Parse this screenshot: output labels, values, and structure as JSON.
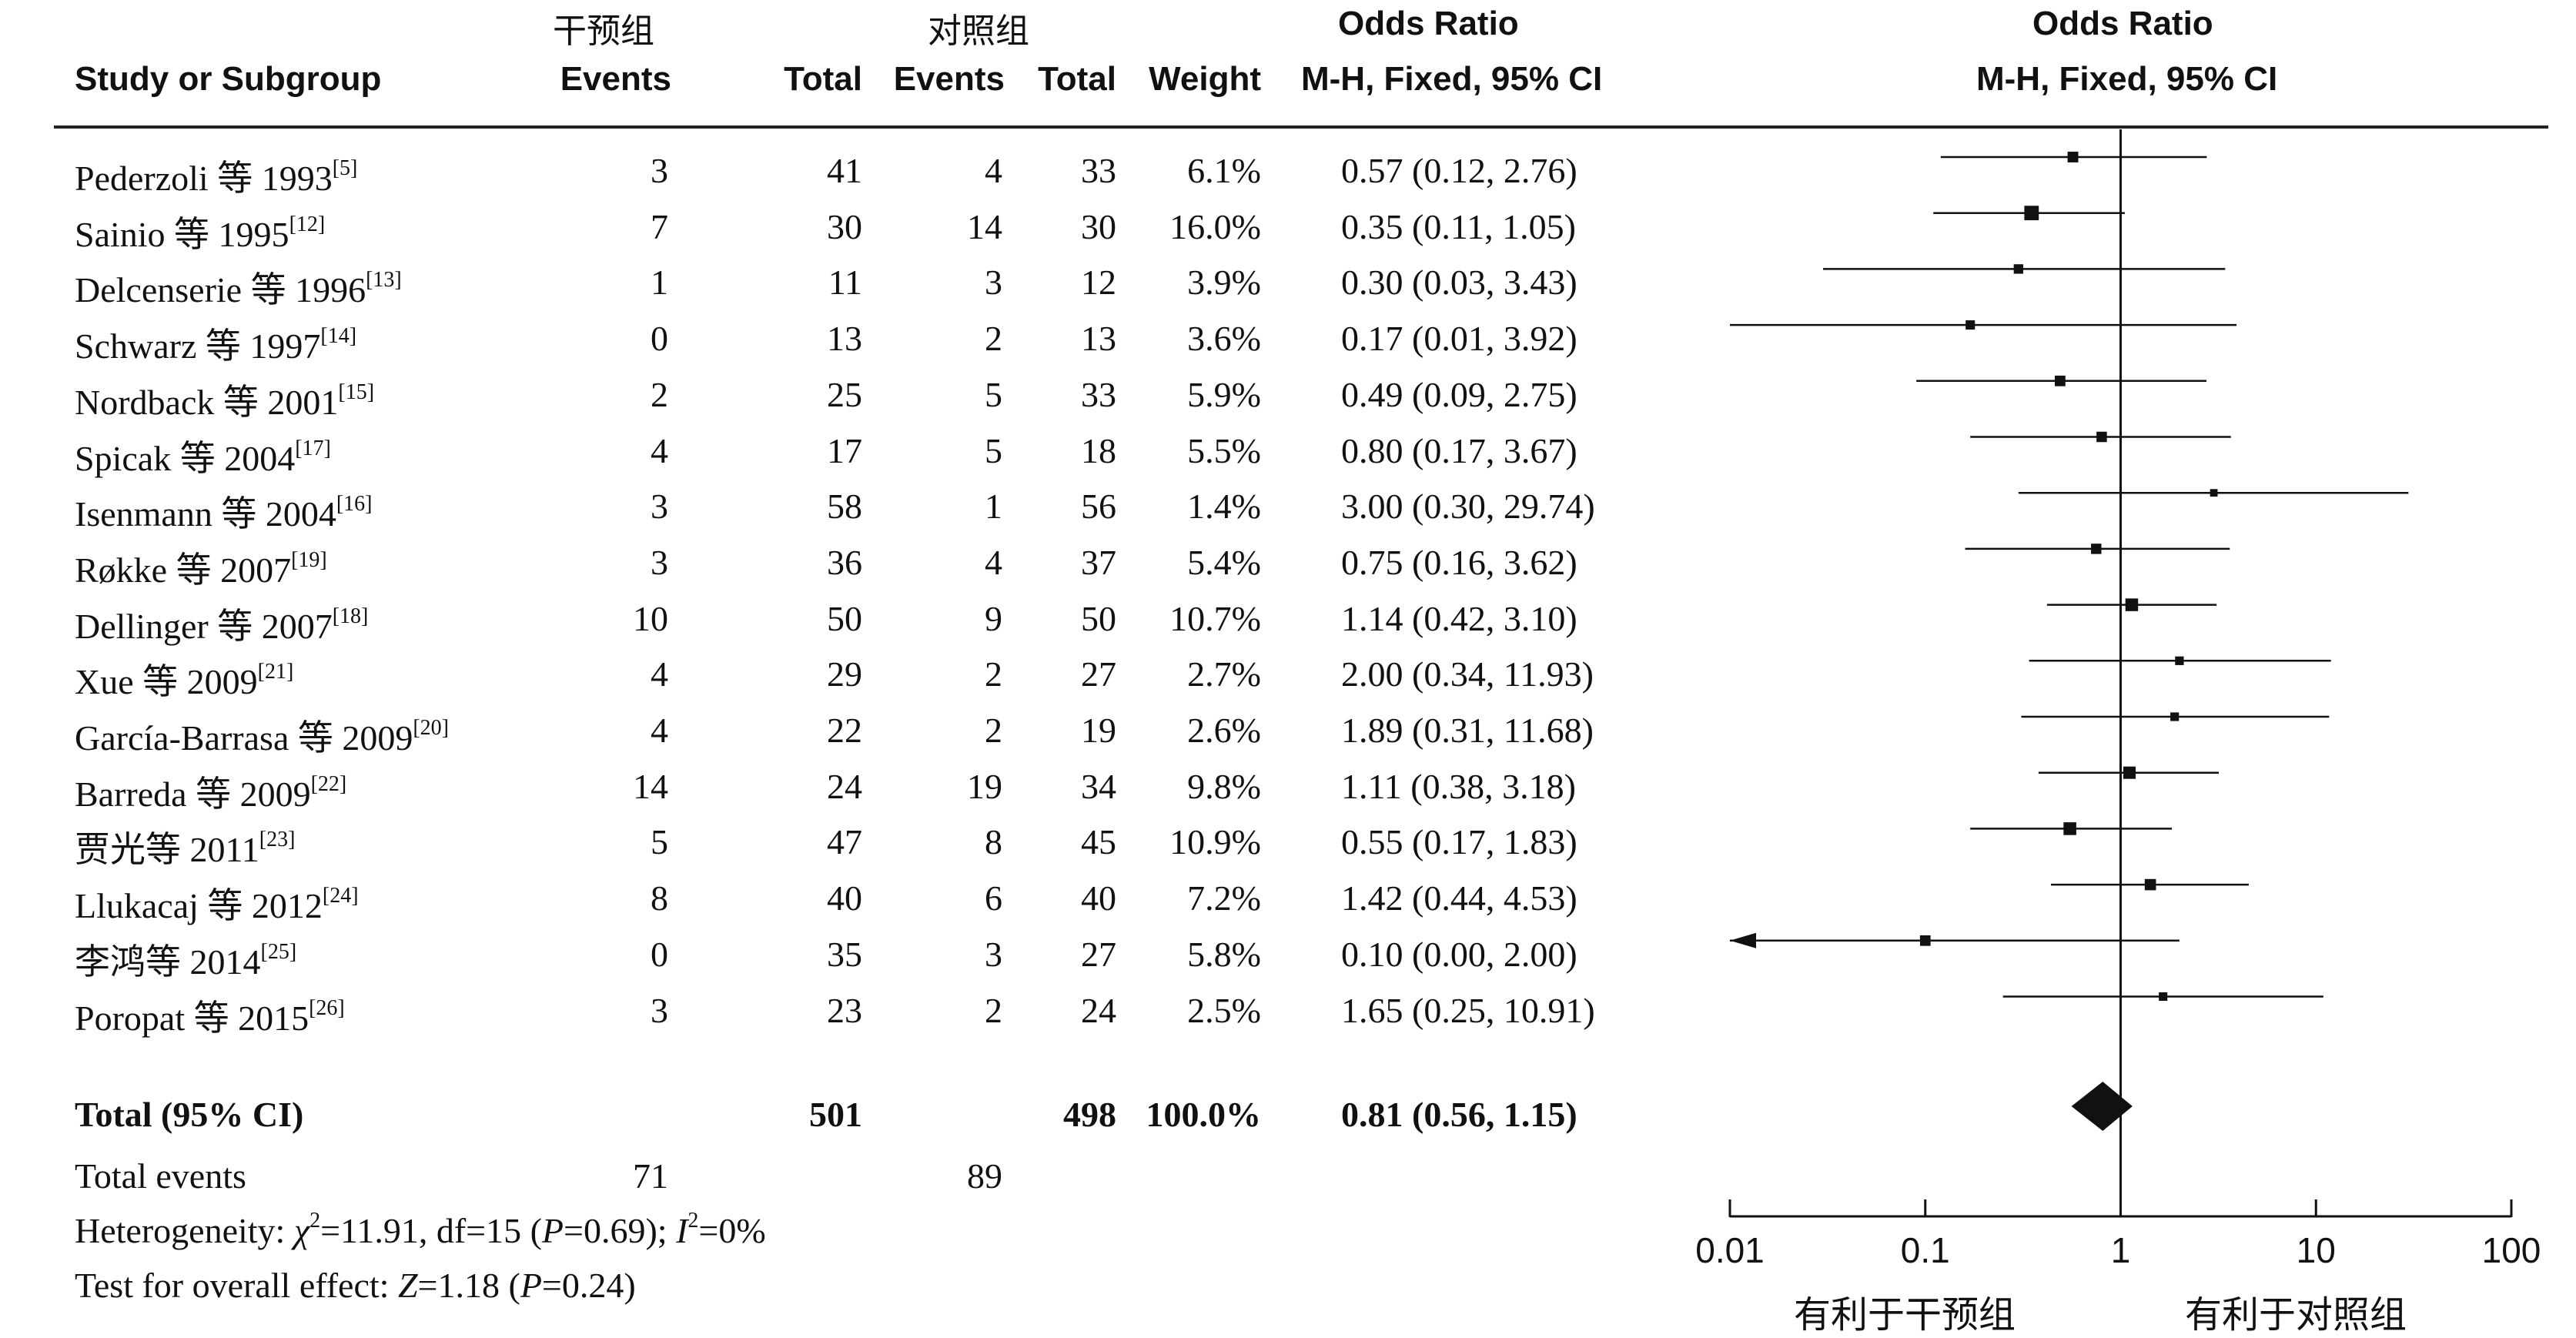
{
  "headers": {
    "study": "Study or Subgroup",
    "group_intervention": "干预组",
    "group_control": "对照组",
    "events": "Events",
    "total": "Total",
    "weight": "Weight",
    "or_top": "Odds Ratio",
    "or_method": "M-H, Fixed, 95% CI",
    "plot_top": "Odds Ratio",
    "plot_method": "M-H, Fixed, 95% CI"
  },
  "studies": [
    {
      "label": "Pederzoli 等 1993",
      "ref": "[5]",
      "e1": "3",
      "t1": "41",
      "e2": "4",
      "t2": "33",
      "weight": "6.1%",
      "ci_text": "0.57 (0.12, 2.76)",
      "or": 0.57,
      "lo": 0.12,
      "hi": 2.76,
      "w": 6.1
    },
    {
      "label": "Sainio 等 1995",
      "ref": "[12]",
      "e1": "7",
      "t1": "30",
      "e2": "14",
      "t2": "30",
      "weight": "16.0%",
      "ci_text": "0.35 (0.11, 1.05)",
      "or": 0.35,
      "lo": 0.11,
      "hi": 1.05,
      "w": 16.0
    },
    {
      "label": "Delcenserie 等 1996",
      "ref": "[13]",
      "e1": "1",
      "t1": "11",
      "e2": "3",
      "t2": "12",
      "weight": "3.9%",
      "ci_text": "0.30 (0.03, 3.43)",
      "or": 0.3,
      "lo": 0.03,
      "hi": 3.43,
      "w": 3.9
    },
    {
      "label": "Schwarz 等 1997",
      "ref": "[14]",
      "e1": "0",
      "t1": "13",
      "e2": "2",
      "t2": "13",
      "weight": "3.6%",
      "ci_text": "0.17 (0.01, 3.92)",
      "or": 0.17,
      "lo": 0.01,
      "hi": 3.92,
      "w": 3.6
    },
    {
      "label": "Nordback 等 2001",
      "ref": "[15]",
      "e1": "2",
      "t1": "25",
      "e2": "5",
      "t2": "33",
      "weight": "5.9%",
      "ci_text": "0.49 (0.09, 2.75)",
      "or": 0.49,
      "lo": 0.09,
      "hi": 2.75,
      "w": 5.9
    },
    {
      "label": "Spicak 等 2004",
      "ref": "[17]",
      "e1": "4",
      "t1": "17",
      "e2": "5",
      "t2": "18",
      "weight": "5.5%",
      "ci_text": "0.80 (0.17, 3.67)",
      "or": 0.8,
      "lo": 0.17,
      "hi": 3.67,
      "w": 5.5
    },
    {
      "label": "Isenmann 等 2004",
      "ref": "[16]",
      "e1": "3",
      "t1": "58",
      "e2": "1",
      "t2": "56",
      "weight": "1.4%",
      "ci_text": "3.00 (0.30, 29.74)",
      "or": 3.0,
      "lo": 0.3,
      "hi": 29.74,
      "w": 1.4
    },
    {
      "label": "Røkke 等 2007",
      "ref": "[19]",
      "e1": "3",
      "t1": "36",
      "e2": "4",
      "t2": "37",
      "weight": "5.4%",
      "ci_text": "0.75 (0.16, 3.62)",
      "or": 0.75,
      "lo": 0.16,
      "hi": 3.62,
      "w": 5.4
    },
    {
      "label": "Dellinger 等 2007",
      "ref": "[18]",
      "e1": "10",
      "t1": "50",
      "e2": "9",
      "t2": "50",
      "weight": "10.7%",
      "ci_text": "1.14 (0.42, 3.10)",
      "or": 1.14,
      "lo": 0.42,
      "hi": 3.1,
      "w": 10.7
    },
    {
      "label": "Xue 等 2009",
      "ref": "[21]",
      "e1": "4",
      "t1": "29",
      "e2": "2",
      "t2": "27",
      "weight": "2.7%",
      "ci_text": "2.00 (0.34, 11.93)",
      "or": 2.0,
      "lo": 0.34,
      "hi": 11.93,
      "w": 2.7
    },
    {
      "label": "García-Barrasa 等 2009",
      "ref": "[20]",
      "e1": "4",
      "t1": "22",
      "e2": "2",
      "t2": "19",
      "weight": "2.6%",
      "ci_text": "1.89 (0.31, 11.68)",
      "or": 1.89,
      "lo": 0.31,
      "hi": 11.68,
      "w": 2.6
    },
    {
      "label": "Barreda 等 2009",
      "ref": "[22]",
      "e1": "14",
      "t1": "24",
      "e2": "19",
      "t2": "34",
      "weight": "9.8%",
      "ci_text": "1.11 (0.38, 3.18)",
      "or": 1.11,
      "lo": 0.38,
      "hi": 3.18,
      "w": 9.8
    },
    {
      "label": "贾光等 2011",
      "ref": "[23]",
      "e1": "5",
      "t1": "47",
      "e2": "8",
      "t2": "45",
      "weight": "10.9%",
      "ci_text": "0.55 (0.17, 1.83)",
      "or": 0.55,
      "lo": 0.17,
      "hi": 1.83,
      "w": 10.9
    },
    {
      "label": "Llukacaj 等 2012",
      "ref": "[24]",
      "e1": "8",
      "t1": "40",
      "e2": "6",
      "t2": "40",
      "weight": "7.2%",
      "ci_text": "1.42 (0.44, 4.53)",
      "or": 1.42,
      "lo": 0.44,
      "hi": 4.53,
      "w": 7.2
    },
    {
      "label": "李鸿等 2014",
      "ref": "[25]",
      "e1": "0",
      "t1": "35",
      "e2": "3",
      "t2": "27",
      "weight": "5.8%",
      "ci_text": "0.10 (0.00, 2.00)",
      "or": 0.1,
      "lo": 0.0,
      "hi": 2.0,
      "w": 5.8
    },
    {
      "label": "Poropat 等 2015",
      "ref": "[26]",
      "e1": "3",
      "t1": "23",
      "e2": "2",
      "t2": "24",
      "weight": "2.5%",
      "ci_text": "1.65 (0.25, 10.91)",
      "or": 1.65,
      "lo": 0.25,
      "hi": 10.91,
      "w": 2.5
    }
  ],
  "total": {
    "label": "Total (95% CI)",
    "t1": "501",
    "t2": "498",
    "weight": "100.0%",
    "ci_text": "0.81 (0.56, 1.15)",
    "or": 0.81,
    "lo": 0.56,
    "hi": 1.15
  },
  "total_events": {
    "label": "Total events",
    "e1": "71",
    "e2": "89"
  },
  "heterogeneity": {
    "prefix": "Heterogeneity: ",
    "chi": "χ",
    "chi_value": "=11.91, df=15 (",
    "p": "P",
    "p_value": "=0.69); ",
    "i": "I",
    "i_value": "=0%"
  },
  "overall": {
    "prefix": "Test for overall effect: ",
    "z": "Z",
    "z_value": "=1.18 (",
    "p": "P",
    "p_value": "=0.24)"
  },
  "chart_data": {
    "type": "forest",
    "scale": "log",
    "xlim": [
      0.01,
      100
    ],
    "ticks": [
      0.01,
      0.1,
      1,
      10,
      100
    ],
    "tick_labels": [
      "0.01",
      "0.1",
      "1",
      "10",
      "100"
    ],
    "null_line": 1,
    "favours_left": "有利于干预组",
    "favours_right": "有利于对照组"
  }
}
